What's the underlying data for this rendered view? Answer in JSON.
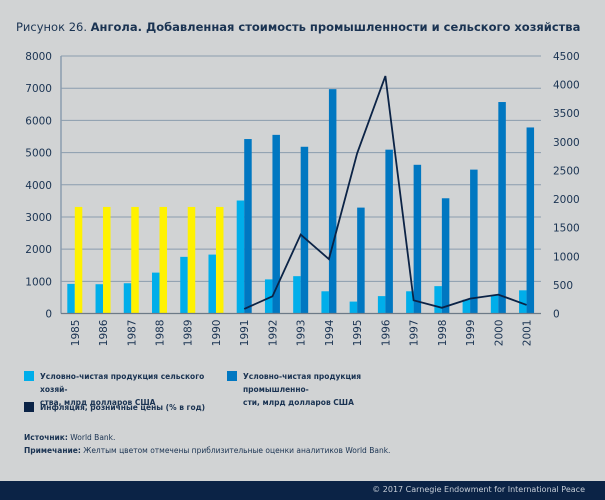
{
  "title": {
    "prefix": "Рисунок 26.",
    "main": "Ангола. Добавленная стоимость промышленности и сельского хозяйства"
  },
  "legend": [
    {
      "label": "Условно-чистая продукция сельского хозяй-ства, млрд долларов США",
      "line1": "Условно-чистая продукция сельского хозяй-",
      "line2": "ства, млрд долларов США",
      "color": "#00aeea"
    },
    {
      "label": "Условно-чистая продукция промышленно-сти, млрд долларов США",
      "line1": "Условно-чистая продукция промышленно-",
      "line2": "сти, млрд долларов США",
      "color": "#0077c1"
    },
    {
      "label": "Инфляция, розничные цены (% в год)",
      "line1": "Инфляция, розничные цены (% в год)",
      "color": "#0b2346"
    }
  ],
  "notes": {
    "source_label": "Источник:",
    "source_text": " World Bank.",
    "note_label": "Примечание:",
    "note_text": " Желтым цветом отмечены приблизительные оценки аналитиков World Bank."
  },
  "footer": "© 2017 Carnegie Endowment for International Peace",
  "chart_data": {
    "type": "bar",
    "title": "Ангола. Добавленная стоимость промышленности и сельского хозяйства",
    "categories": [
      "1985",
      "1986",
      "1987",
      "1988",
      "1989",
      "1990",
      "1991",
      "1992",
      "1993",
      "1994",
      "1995",
      "1996",
      "1997",
      "1998",
      "1999",
      "2000",
      "2001"
    ],
    "series": [
      {
        "name": "Условно-чистая продукция сельского хозяйства, млрд долларов США",
        "axis": "left",
        "type": "bar",
        "color": "#00aeea",
        "values": [
          920,
          910,
          940,
          1270,
          1760,
          1830,
          3510,
          1060,
          1160,
          690,
          370,
          540,
          690,
          850,
          430,
          560,
          720
        ]
      },
      {
        "name": "Условно-чистая продукция промышленности, млрд долларов США",
        "axis": "left",
        "type": "bar",
        "color": "#0077c1",
        "values": [
          null,
          null,
          null,
          null,
          null,
          null,
          5420,
          5550,
          5180,
          6970,
          3290,
          5090,
          4620,
          3580,
          4470,
          6570,
          5780
        ]
      },
      {
        "name": "Промышленность (приблизительные оценки World Bank)",
        "axis": "left",
        "type": "bar",
        "color": "#fff200",
        "values": [
          3310,
          3310,
          3310,
          3310,
          3310,
          3310,
          null,
          null,
          null,
          null,
          null,
          null,
          null,
          null,
          null,
          null,
          null
        ]
      },
      {
        "name": "Инфляция, розничные цены (% в год)",
        "axis": "right",
        "type": "line",
        "color": "#0b2346",
        "values": [
          null,
          null,
          null,
          null,
          null,
          null,
          80,
          300,
          1380,
          950,
          2800,
          4150,
          230,
          100,
          260,
          330,
          150
        ]
      }
    ],
    "xlabel": "",
    "ylabel_left": "",
    "ylabel_right": "",
    "ylim_left": [
      0,
      8000
    ],
    "yticks_left": [
      0,
      1000,
      2000,
      3000,
      4000,
      5000,
      6000,
      7000,
      8000
    ],
    "ylim_right": [
      0,
      4500
    ],
    "yticks_right": [
      0,
      500,
      1000,
      1500,
      2000,
      2500,
      3000,
      3500,
      4000,
      4500
    ],
    "grid": true,
    "legend_position": "bottom"
  }
}
